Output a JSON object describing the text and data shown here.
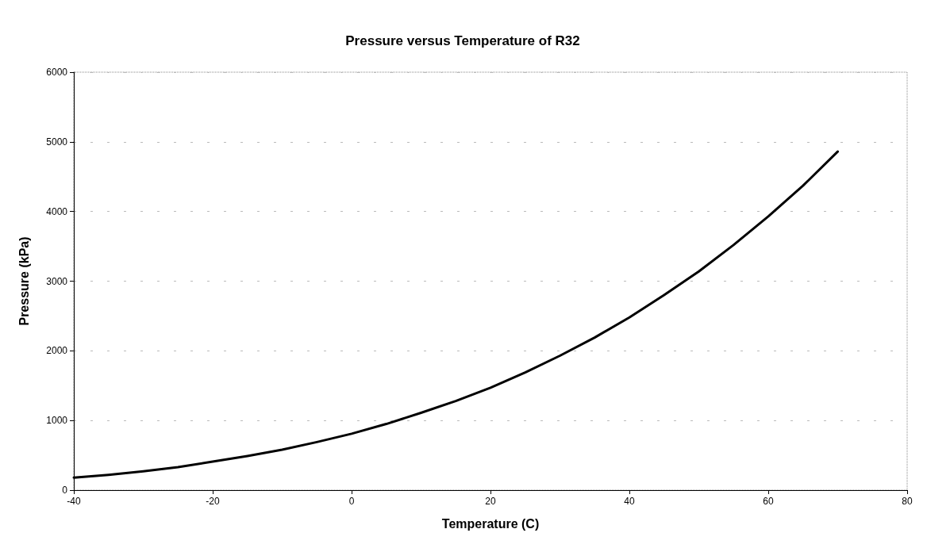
{
  "chart_data": {
    "type": "line",
    "title": "Pressure versus Temperature of R32",
    "xlabel": "Temperature (C)",
    "ylabel": "Pressure (kPa)",
    "x": [
      -40,
      -35,
      -30,
      -25,
      -20,
      -15,
      -10,
      -5,
      0,
      5,
      10,
      15,
      20,
      25,
      30,
      35,
      40,
      45,
      50,
      55,
      60,
      65,
      70
    ],
    "series": [
      {
        "color": "#000000",
        "values": [
          180,
          220,
          270,
          330,
          410,
          490,
          580,
          690,
          810,
          950,
          1110,
          1280,
          1470,
          1690,
          1930,
          2190,
          2480,
          2800,
          3140,
          3520,
          3930,
          4370,
          4860
        ]
      }
    ],
    "xlim": [
      -40,
      80
    ],
    "xticks": [
      -40,
      -20,
      0,
      20,
      40,
      60,
      80
    ],
    "ylim": [
      0,
      6000
    ],
    "yticks": [
      0,
      1000,
      2000,
      3000,
      4000,
      5000,
      6000
    ],
    "grid": "y",
    "marker": "none",
    "line_style": "solid"
  }
}
